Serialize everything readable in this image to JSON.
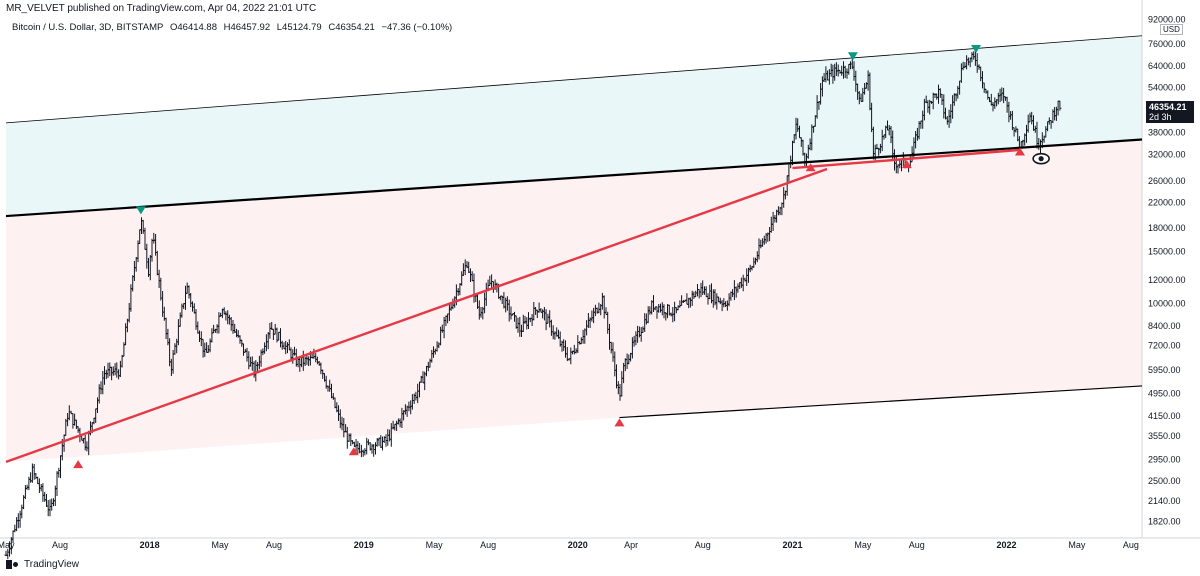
{
  "header": {
    "credit": "MR_VELVET published on TradingView.com, Apr 04, 2022 21:01 UTC"
  },
  "legend": {
    "symbol": "Bitcoin / U.S. Dollar, 3D, BITSTAMP",
    "open": "O46414.88",
    "high": "H46457.92",
    "low": "L45124.79",
    "close": "C46354.21",
    "change": "−47.36 (−0.10%)"
  },
  "price_tag": {
    "price": "46354.21",
    "countdown": "2d 3h"
  },
  "currency": "USD",
  "footer": {
    "brand": "TradingView"
  },
  "colors": {
    "upper_band_fill": "#e9f7f9",
    "lower_band_fill": "#fdf1f2",
    "support_line": "#e53945",
    "trend_line": "#000000",
    "marker_up": "#e53945",
    "marker_down": "#089981",
    "candle": "#131722"
  },
  "chart_data": {
    "type": "ohlc",
    "scale": "log",
    "ylim": [
      1600,
      96000
    ],
    "xlim": [
      "2017-05-01",
      "2022-08-20"
    ],
    "x_tick_labels": [
      "May",
      "Aug",
      "2018",
      "May",
      "Aug",
      "2019",
      "May",
      "Aug",
      "2020",
      "Apr",
      "Aug",
      "2021",
      "May",
      "Aug",
      "2022",
      "May",
      "Aug"
    ],
    "x_tick_dates": [
      "2017-05-01",
      "2017-08-01",
      "2018-01-01",
      "2018-05-01",
      "2018-08-01",
      "2019-01-01",
      "2019-05-01",
      "2019-08-01",
      "2020-01-01",
      "2020-04-01",
      "2020-08-01",
      "2021-01-01",
      "2021-05-01",
      "2021-08-01",
      "2022-01-01",
      "2022-05-01",
      "2022-08-01"
    ],
    "y_tick_values": [
      1820,
      2140,
      2500,
      2950,
      3550,
      4150,
      4950,
      5950,
      7200,
      8400,
      10000,
      12000,
      15000,
      18000,
      22000,
      26000,
      32000,
      38000,
      46000,
      54000,
      64000,
      76000,
      92000
    ],
    "y_tick_labels": [
      "1820.00",
      "2140.00",
      "2500.00",
      "2950.00",
      "3550.00",
      "4150.00",
      "4950.00",
      "5950.00",
      "7200.00",
      "8400.00",
      "10000.00",
      "12000.00",
      "15000.00",
      "18000.00",
      "22000.00",
      "26000.00",
      "32000.00",
      "38000.00",
      "46000.00",
      "54000.00",
      "64000.00",
      "76000.00",
      "92000.00"
    ],
    "price_path": [
      [
        "2017-05-01",
        1400
      ],
      [
        "2017-06-15",
        2700
      ],
      [
        "2017-07-16",
        1950
      ],
      [
        "2017-08-15",
        4300
      ],
      [
        "2017-09-15",
        3300
      ],
      [
        "2017-10-15",
        5800
      ],
      [
        "2017-11-12",
        5900
      ],
      [
        "2017-12-17",
        19300
      ],
      [
        "2017-12-30",
        13000
      ],
      [
        "2018-01-06",
        17000
      ],
      [
        "2018-02-06",
        6000
      ],
      [
        "2018-03-05",
        11500
      ],
      [
        "2018-04-06",
        6600
      ],
      [
        "2018-05-05",
        9800
      ],
      [
        "2018-06-29",
        5800
      ],
      [
        "2018-07-25",
        8400
      ],
      [
        "2018-09-10",
        6300
      ],
      [
        "2018-10-15",
        6500
      ],
      [
        "2018-11-25",
        3800
      ],
      [
        "2018-12-15",
        3200
      ],
      [
        "2019-02-07",
        3400
      ],
      [
        "2019-04-02",
        5000
      ],
      [
        "2019-05-14",
        8000
      ],
      [
        "2019-06-26",
        13800
      ],
      [
        "2019-07-17",
        9200
      ],
      [
        "2019-08-06",
        12000
      ],
      [
        "2019-09-25",
        8100
      ],
      [
        "2019-10-26",
        9800
      ],
      [
        "2019-12-17",
        6500
      ],
      [
        "2020-02-12",
        10400
      ],
      [
        "2020-03-12",
        4800
      ],
      [
        "2020-03-20",
        6200
      ],
      [
        "2020-05-07",
        9900
      ],
      [
        "2020-06-15",
        9300
      ],
      [
        "2020-07-27",
        11200
      ],
      [
        "2020-09-08",
        10000
      ],
      [
        "2020-10-21",
        13000
      ],
      [
        "2020-12-17",
        23000
      ],
      [
        "2021-01-08",
        41000
      ],
      [
        "2021-01-22",
        30000
      ],
      [
        "2021-02-21",
        57000
      ],
      [
        "2021-03-13",
        61000
      ],
      [
        "2021-04-14",
        64000
      ],
      [
        "2021-04-25",
        48000
      ],
      [
        "2021-05-10",
        58000
      ],
      [
        "2021-05-19",
        32000
      ],
      [
        "2021-06-15",
        40000
      ],
      [
        "2021-06-22",
        30000
      ],
      [
        "2021-07-20",
        30000
      ],
      [
        "2021-08-14",
        47000
      ],
      [
        "2021-09-07",
        52000
      ],
      [
        "2021-09-22",
        41000
      ],
      [
        "2021-10-20",
        66000
      ],
      [
        "2021-11-10",
        68000
      ],
      [
        "2021-12-04",
        47000
      ],
      [
        "2021-12-27",
        51000
      ],
      [
        "2022-01-24",
        34000
      ],
      [
        "2022-02-10",
        44000
      ],
      [
        "2022-02-24",
        35000
      ],
      [
        "2022-03-10",
        39000
      ],
      [
        "2022-03-29",
        47500
      ],
      [
        "2022-04-04",
        46354
      ]
    ],
    "band_lines": [
      {
        "name": "upper channel",
        "color": "#000000",
        "width": 0.8,
        "from": [
          "2017-05-01",
          41000
        ],
        "to": [
          "2022-08-20",
          81000
        ]
      },
      {
        "name": "middle channel",
        "color": "#000000",
        "width": 2.2,
        "from": [
          "2017-05-01",
          19800
        ],
        "to": [
          "2022-08-20",
          36000
        ]
      },
      {
        "name": "support",
        "color": "#e53945",
        "width": 2.4,
        "from": [
          "2017-05-01",
          2900
        ],
        "to": [
          "2021-03-01",
          28600
        ]
      },
      {
        "name": "support extension",
        "color": "#000000",
        "width": 1.2,
        "from": [
          "2020-03-12",
          4100
        ],
        "to": [
          "2022-08-20",
          5250
        ]
      },
      {
        "name": "support upper",
        "color": "#e53945",
        "width": 2.4,
        "from": [
          "2021-01-01",
          28800
        ],
        "to": [
          "2022-01-24",
          33200
        ]
      }
    ],
    "markers_up": [
      [
        "2017-09-01",
        2850
      ],
      [
        "2018-12-15",
        3150
      ],
      [
        "2020-03-12",
        3950
      ],
      [
        "2021-02-01",
        29000
      ],
      [
        "2021-07-15",
        29700
      ],
      [
        "2022-01-24",
        32800
      ]
    ],
    "markers_down": [
      [
        "2017-12-17",
        20700
      ],
      [
        "2021-04-14",
        69000
      ],
      [
        "2021-11-10",
        73000
      ]
    ],
    "eye_annotation": [
      "2022-03-01",
      31000
    ]
  }
}
